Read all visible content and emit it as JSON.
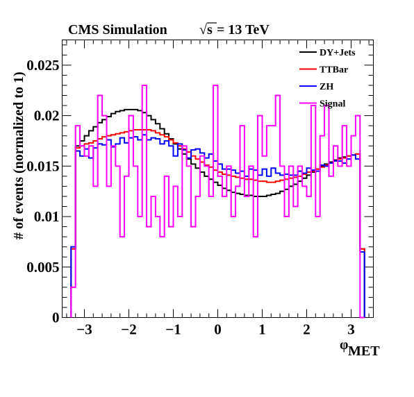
{
  "title": {
    "label": "CMS Simulation",
    "energy_sqrt": "√s",
    "energy_rest": " = 13 TeV"
  },
  "chart_data": {
    "type": "line",
    "style": "step-histogram",
    "xlabel_main": "φ",
    "xlabel_sub": "MET",
    "ylabel": "# of events (normalized to 1)",
    "xlim": [
      -3.5,
      3.5
    ],
    "ylim": [
      0,
      0.0275
    ],
    "x_ticks": [
      -3,
      -2,
      -1,
      0,
      1,
      2,
      3
    ],
    "x_tick_labels": [
      "−3",
      "−2",
      "−1",
      "0",
      "1",
      "2",
      "3"
    ],
    "y_ticks": [
      0,
      0.005,
      0.01,
      0.015,
      0.02,
      0.025
    ],
    "y_tick_labels": [
      "0",
      "0.005",
      "0.01",
      "0.015",
      "0.02",
      "0.025"
    ],
    "bin_edges_range": [
      -3.3,
      3.3
    ],
    "bin_count": 66,
    "grid": false,
    "legend_position": "top-right",
    "series": [
      {
        "name": "DY+Jets",
        "color": "#000000",
        "values": [
          0.0068,
          0.017,
          0.0175,
          0.018,
          0.0185,
          0.0189,
          0.0193,
          0.0196,
          0.0199,
          0.0202,
          0.0204,
          0.0205,
          0.0206,
          0.0206,
          0.0206,
          0.0205,
          0.0203,
          0.02,
          0.0196,
          0.0192,
          0.0187,
          0.0182,
          0.0177,
          0.0172,
          0.0167,
          0.0162,
          0.0157,
          0.0152,
          0.0148,
          0.0144,
          0.014,
          0.0137,
          0.0134,
          0.0131,
          0.0128,
          0.0126,
          0.0124,
          0.0123,
          0.0122,
          0.0121,
          0.0121,
          0.012,
          0.012,
          0.012,
          0.0121,
          0.0122,
          0.0123,
          0.0125,
          0.0127,
          0.013,
          0.0132,
          0.0135,
          0.0138,
          0.0141,
          0.0144,
          0.0147,
          0.015,
          0.0152,
          0.0154,
          0.0156,
          0.0158,
          0.0159,
          0.016,
          0.0161,
          0.0162,
          0.0068
        ]
      },
      {
        "name": "TTBar",
        "color": "#ff0000",
        "values": [
          0.0068,
          0.0168,
          0.017,
          0.0172,
          0.0173,
          0.0175,
          0.0177,
          0.0179,
          0.018,
          0.0181,
          0.0182,
          0.0183,
          0.0184,
          0.0185,
          0.0186,
          0.0186,
          0.0186,
          0.0186,
          0.0185,
          0.0183,
          0.0181,
          0.0179,
          0.0176,
          0.0173,
          0.017,
          0.0167,
          0.0164,
          0.016,
          0.0157,
          0.0154,
          0.0151,
          0.0149,
          0.0146,
          0.0144,
          0.0142,
          0.0141,
          0.014,
          0.0139,
          0.0138,
          0.0137,
          0.0137,
          0.0136,
          0.0135,
          0.0135,
          0.0134,
          0.0134,
          0.0135,
          0.0136,
          0.0137,
          0.0138,
          0.0139,
          0.014,
          0.0142,
          0.0144,
          0.0145,
          0.0147,
          0.0149,
          0.0151,
          0.0153,
          0.0155,
          0.0157,
          0.0158,
          0.016,
          0.0161,
          0.0162,
          0.0068
        ]
      },
      {
        "name": "ZH",
        "color": "#0000ff",
        "values": [
          0.007,
          0.0165,
          0.016,
          0.0167,
          0.0158,
          0.0168,
          0.0172,
          0.0171,
          0.0176,
          0.0169,
          0.0172,
          0.0178,
          0.0173,
          0.0178,
          0.0179,
          0.0176,
          0.0181,
          0.0176,
          0.0178,
          0.0177,
          0.0172,
          0.0175,
          0.017,
          0.016,
          0.0172,
          0.0166,
          0.0158,
          0.0166,
          0.0167,
          0.0163,
          0.0158,
          0.0162,
          0.0155,
          0.0152,
          0.0147,
          0.0147,
          0.0146,
          0.0143,
          0.0145,
          0.014,
          0.0147,
          0.0146,
          0.0141,
          0.0147,
          0.014,
          0.0148,
          0.0143,
          0.0141,
          0.0142,
          0.0141,
          0.0141,
          0.0145,
          0.0143,
          0.0148,
          0.0146,
          0.0145,
          0.0151,
          0.015,
          0.0153,
          0.0155,
          0.0155,
          0.0153,
          0.0157,
          0.0161,
          0.0157,
          0.0065
        ]
      },
      {
        "name": "Signal",
        "color": "#ff00ff",
        "values": [
          0.003,
          0.019,
          0.017,
          0.016,
          0.017,
          0.013,
          0.022,
          0.02,
          0.013,
          0.017,
          0.015,
          0.008,
          0.014,
          0.02,
          0.015,
          0.01,
          0.023,
          0.009,
          0.012,
          0.01,
          0.008,
          0.014,
          0.009,
          0.013,
          0.01,
          0.017,
          0.015,
          0.009,
          0.012,
          0.016,
          0.015,
          0.012,
          0.023,
          0.014,
          0.012,
          0.015,
          0.01,
          0.013,
          0.019,
          0.012,
          0.015,
          0.008,
          0.02,
          0.016,
          0.019,
          0.019,
          0.022,
          0.015,
          0.01,
          0.015,
          0.011,
          0.015,
          0.013,
          0.012,
          0.021,
          0.01,
          0.018,
          0.021,
          0.014,
          0.017,
          0.015,
          0.019,
          0.015,
          0.018,
          0.02,
          0.0
        ]
      }
    ]
  }
}
